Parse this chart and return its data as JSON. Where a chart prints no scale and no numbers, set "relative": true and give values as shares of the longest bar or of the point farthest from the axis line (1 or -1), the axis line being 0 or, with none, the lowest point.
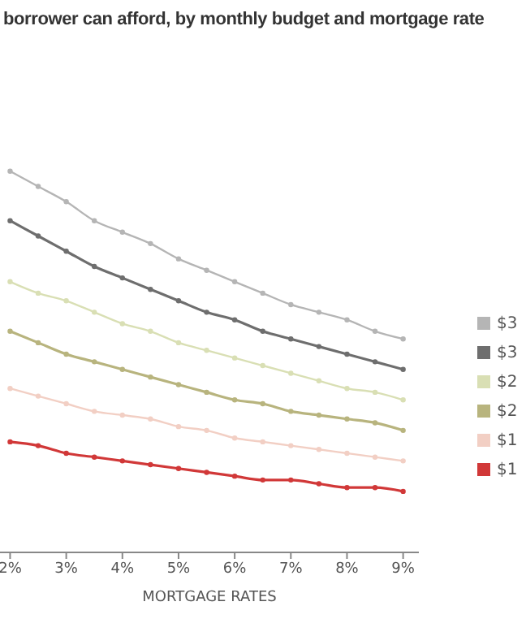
{
  "chart_data": {
    "type": "line",
    "title": "borrower can afford, by monthly budget and mortgage rate",
    "xlabel": "MORTGAGE RATES",
    "relative": true,
    "marker": "circle",
    "legend": "right",
    "x": [
      2,
      2.5,
      3,
      3.5,
      4,
      4.5,
      5,
      5.5,
      6,
      6.5,
      7,
      7.5,
      8,
      8.5,
      9
    ],
    "xlim": [
      1.82,
      9.28
    ],
    "xticks": [
      {
        "value": 2,
        "label": "2%"
      },
      {
        "value": 3,
        "label": "3%"
      },
      {
        "value": 4,
        "label": "4%"
      },
      {
        "value": 5,
        "label": "5%"
      },
      {
        "value": 6,
        "label": "6%"
      },
      {
        "value": 7,
        "label": "7%"
      },
      {
        "value": 8,
        "label": "8%"
      },
      {
        "value": 9,
        "label": "9%"
      }
    ],
    "series": [
      {
        "name": "$3",
        "color": "#b5b5b5",
        "values": [
          1.0,
          0.96,
          0.92,
          0.87,
          0.84,
          0.81,
          0.77,
          0.74,
          0.71,
          0.68,
          0.65,
          0.63,
          0.61,
          0.58,
          0.56
        ]
      },
      {
        "name": "$3",
        "color": "#6e6e6e",
        "values": [
          0.87,
          0.83,
          0.79,
          0.75,
          0.72,
          0.69,
          0.66,
          0.63,
          0.61,
          0.58,
          0.56,
          0.54,
          0.52,
          0.5,
          0.48
        ]
      },
      {
        "name": "$2",
        "color": "#d9dfb4",
        "values": [
          0.71,
          0.68,
          0.66,
          0.63,
          0.6,
          0.58,
          0.55,
          0.53,
          0.51,
          0.49,
          0.47,
          0.45,
          0.43,
          0.42,
          0.4
        ]
      },
      {
        "name": "$2",
        "color": "#b8b47e",
        "values": [
          0.58,
          0.55,
          0.52,
          0.5,
          0.48,
          0.46,
          0.44,
          0.42,
          0.4,
          0.39,
          0.37,
          0.36,
          0.35,
          0.34,
          0.32
        ]
      },
      {
        "name": "$1",
        "color": "#f2cfc4",
        "values": [
          0.43,
          0.41,
          0.39,
          0.37,
          0.36,
          0.35,
          0.33,
          0.32,
          0.3,
          0.29,
          0.28,
          0.27,
          0.26,
          0.25,
          0.24
        ]
      },
      {
        "name": "$1",
        "color": "#d13838",
        "values": [
          0.29,
          0.28,
          0.26,
          0.25,
          0.24,
          0.23,
          0.22,
          0.21,
          0.2,
          0.19,
          0.19,
          0.18,
          0.17,
          0.17,
          0.16
        ]
      }
    ]
  }
}
